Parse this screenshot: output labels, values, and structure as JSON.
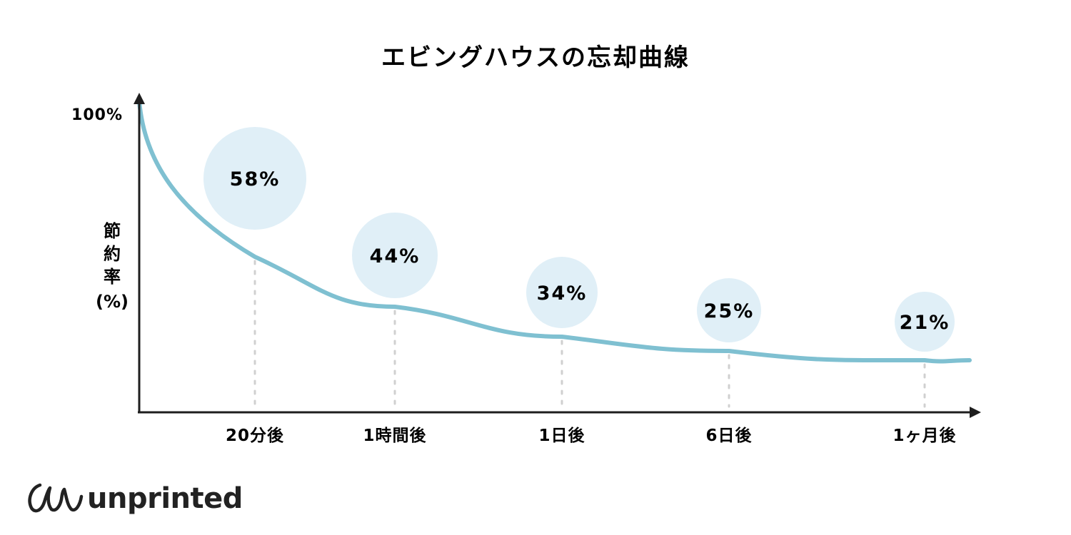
{
  "chart_data": {
    "type": "line",
    "title": "エビングハウスの忘却曲線",
    "ylabel": "節約率 (%)",
    "ylabel_lines": [
      "節",
      "約",
      "率",
      "(%)"
    ],
    "ytick_top": "100%",
    "xlabel": "",
    "categories": [
      "20分後",
      "1時間後",
      "1日後",
      "6日後",
      "1ヶ月後"
    ],
    "series": [
      {
        "values": [
          58,
          44,
          34,
          25,
          21
        ],
        "labels": [
          "58%",
          "44%",
          "34%",
          "25%",
          "21%"
        ]
      }
    ],
    "start_value": 100,
    "grid": false,
    "colors": {
      "line": "#7fc0d1",
      "bubble": "#e0eff7",
      "axis": "#1e1e1e",
      "guide": "#d0d0d0"
    }
  },
  "brand": {
    "logo_text": "unprinted",
    "logo_mark": "unprinted-logo-mark"
  }
}
